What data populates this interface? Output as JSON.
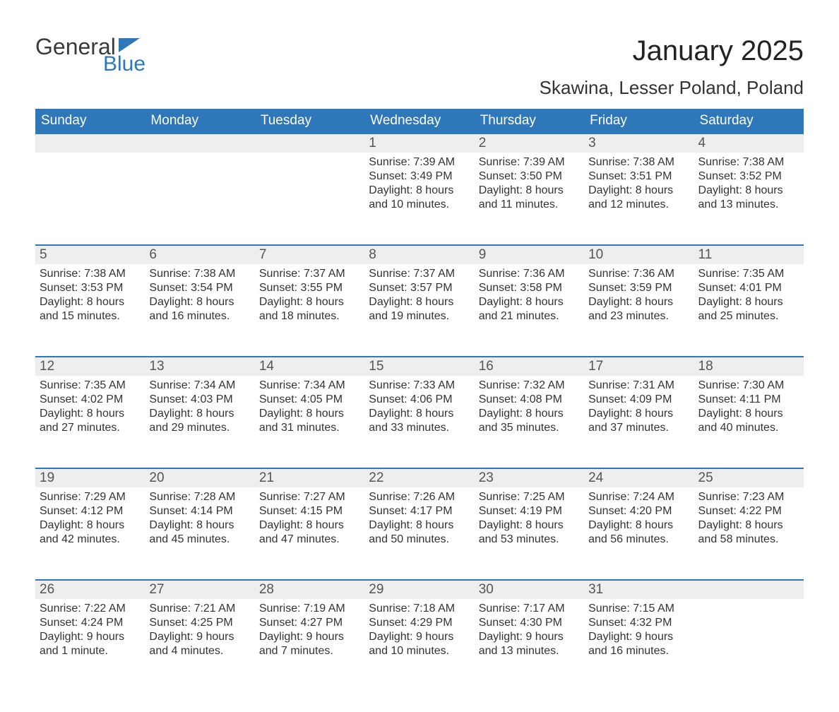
{
  "logo": {
    "word1": "General",
    "word2": "Blue"
  },
  "title": "January 2025",
  "location": "Skawina, Lesser Poland, Poland",
  "colors": {
    "header_bg": "#2e77b8",
    "header_text": "#ffffff",
    "daynum_bg": "#eeeeee",
    "rule": "#2e77b8",
    "text": "#333333",
    "page_bg": "#ffffff"
  },
  "daysOfWeek": [
    "Sunday",
    "Monday",
    "Tuesday",
    "Wednesday",
    "Thursday",
    "Friday",
    "Saturday"
  ],
  "weeks": [
    [
      null,
      null,
      null,
      {
        "n": "1",
        "sr": "Sunrise: 7:39 AM",
        "ss": "Sunset: 3:49 PM",
        "dl": "Daylight: 8 hours and 10 minutes."
      },
      {
        "n": "2",
        "sr": "Sunrise: 7:39 AM",
        "ss": "Sunset: 3:50 PM",
        "dl": "Daylight: 8 hours and 11 minutes."
      },
      {
        "n": "3",
        "sr": "Sunrise: 7:38 AM",
        "ss": "Sunset: 3:51 PM",
        "dl": "Daylight: 8 hours and 12 minutes."
      },
      {
        "n": "4",
        "sr": "Sunrise: 7:38 AM",
        "ss": "Sunset: 3:52 PM",
        "dl": "Daylight: 8 hours and 13 minutes."
      }
    ],
    [
      {
        "n": "5",
        "sr": "Sunrise: 7:38 AM",
        "ss": "Sunset: 3:53 PM",
        "dl": "Daylight: 8 hours and 15 minutes."
      },
      {
        "n": "6",
        "sr": "Sunrise: 7:38 AM",
        "ss": "Sunset: 3:54 PM",
        "dl": "Daylight: 8 hours and 16 minutes."
      },
      {
        "n": "7",
        "sr": "Sunrise: 7:37 AM",
        "ss": "Sunset: 3:55 PM",
        "dl": "Daylight: 8 hours and 18 minutes."
      },
      {
        "n": "8",
        "sr": "Sunrise: 7:37 AM",
        "ss": "Sunset: 3:57 PM",
        "dl": "Daylight: 8 hours and 19 minutes."
      },
      {
        "n": "9",
        "sr": "Sunrise: 7:36 AM",
        "ss": "Sunset: 3:58 PM",
        "dl": "Daylight: 8 hours and 21 minutes."
      },
      {
        "n": "10",
        "sr": "Sunrise: 7:36 AM",
        "ss": "Sunset: 3:59 PM",
        "dl": "Daylight: 8 hours and 23 minutes."
      },
      {
        "n": "11",
        "sr": "Sunrise: 7:35 AM",
        "ss": "Sunset: 4:01 PM",
        "dl": "Daylight: 8 hours and 25 minutes."
      }
    ],
    [
      {
        "n": "12",
        "sr": "Sunrise: 7:35 AM",
        "ss": "Sunset: 4:02 PM",
        "dl": "Daylight: 8 hours and 27 minutes."
      },
      {
        "n": "13",
        "sr": "Sunrise: 7:34 AM",
        "ss": "Sunset: 4:03 PM",
        "dl": "Daylight: 8 hours and 29 minutes."
      },
      {
        "n": "14",
        "sr": "Sunrise: 7:34 AM",
        "ss": "Sunset: 4:05 PM",
        "dl": "Daylight: 8 hours and 31 minutes."
      },
      {
        "n": "15",
        "sr": "Sunrise: 7:33 AM",
        "ss": "Sunset: 4:06 PM",
        "dl": "Daylight: 8 hours and 33 minutes."
      },
      {
        "n": "16",
        "sr": "Sunrise: 7:32 AM",
        "ss": "Sunset: 4:08 PM",
        "dl": "Daylight: 8 hours and 35 minutes."
      },
      {
        "n": "17",
        "sr": "Sunrise: 7:31 AM",
        "ss": "Sunset: 4:09 PM",
        "dl": "Daylight: 8 hours and 37 minutes."
      },
      {
        "n": "18",
        "sr": "Sunrise: 7:30 AM",
        "ss": "Sunset: 4:11 PM",
        "dl": "Daylight: 8 hours and 40 minutes."
      }
    ],
    [
      {
        "n": "19",
        "sr": "Sunrise: 7:29 AM",
        "ss": "Sunset: 4:12 PM",
        "dl": "Daylight: 8 hours and 42 minutes."
      },
      {
        "n": "20",
        "sr": "Sunrise: 7:28 AM",
        "ss": "Sunset: 4:14 PM",
        "dl": "Daylight: 8 hours and 45 minutes."
      },
      {
        "n": "21",
        "sr": "Sunrise: 7:27 AM",
        "ss": "Sunset: 4:15 PM",
        "dl": "Daylight: 8 hours and 47 minutes."
      },
      {
        "n": "22",
        "sr": "Sunrise: 7:26 AM",
        "ss": "Sunset: 4:17 PM",
        "dl": "Daylight: 8 hours and 50 minutes."
      },
      {
        "n": "23",
        "sr": "Sunrise: 7:25 AM",
        "ss": "Sunset: 4:19 PM",
        "dl": "Daylight: 8 hours and 53 minutes."
      },
      {
        "n": "24",
        "sr": "Sunrise: 7:24 AM",
        "ss": "Sunset: 4:20 PM",
        "dl": "Daylight: 8 hours and 56 minutes."
      },
      {
        "n": "25",
        "sr": "Sunrise: 7:23 AM",
        "ss": "Sunset: 4:22 PM",
        "dl": "Daylight: 8 hours and 58 minutes."
      }
    ],
    [
      {
        "n": "26",
        "sr": "Sunrise: 7:22 AM",
        "ss": "Sunset: 4:24 PM",
        "dl": "Daylight: 9 hours and 1 minute."
      },
      {
        "n": "27",
        "sr": "Sunrise: 7:21 AM",
        "ss": "Sunset: 4:25 PM",
        "dl": "Daylight: 9 hours and 4 minutes."
      },
      {
        "n": "28",
        "sr": "Sunrise: 7:19 AM",
        "ss": "Sunset: 4:27 PM",
        "dl": "Daylight: 9 hours and 7 minutes."
      },
      {
        "n": "29",
        "sr": "Sunrise: 7:18 AM",
        "ss": "Sunset: 4:29 PM",
        "dl": "Daylight: 9 hours and 10 minutes."
      },
      {
        "n": "30",
        "sr": "Sunrise: 7:17 AM",
        "ss": "Sunset: 4:30 PM",
        "dl": "Daylight: 9 hours and 13 minutes."
      },
      {
        "n": "31",
        "sr": "Sunrise: 7:15 AM",
        "ss": "Sunset: 4:32 PM",
        "dl": "Daylight: 9 hours and 16 minutes."
      },
      null
    ]
  ]
}
